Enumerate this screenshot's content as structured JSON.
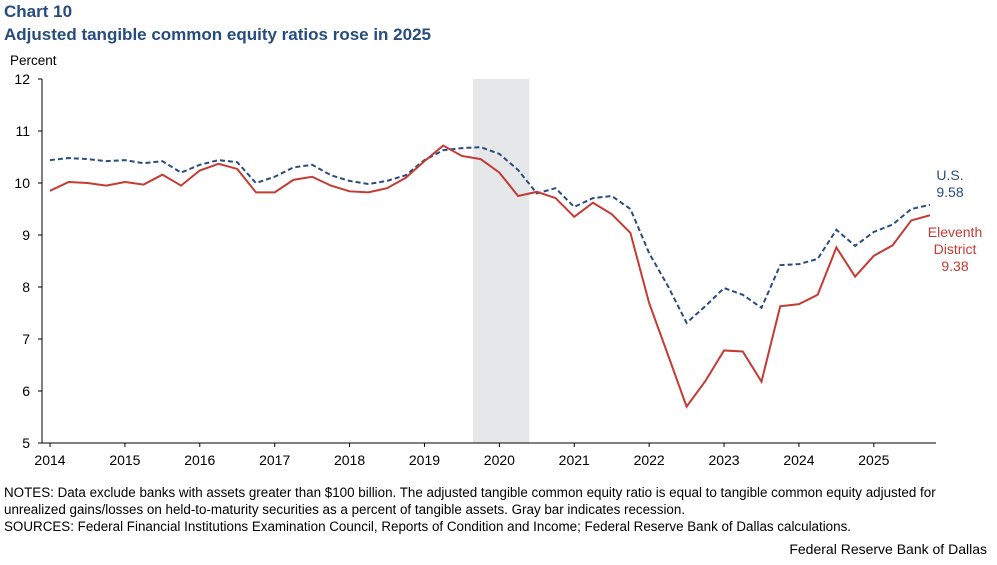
{
  "chart_data": {
    "type": "line",
    "title": "Chart 10",
    "subtitle": "Adjusted tangible common equity ratios rose in 2025",
    "y_label": "Percent",
    "categories": [
      "2014",
      null,
      null,
      null,
      "2015",
      null,
      null,
      null,
      "2016",
      null,
      null,
      null,
      "2017",
      null,
      null,
      null,
      "2018",
      null,
      null,
      null,
      "2019",
      null,
      null,
      null,
      "2020",
      null,
      null,
      null,
      "2021",
      null,
      null,
      null,
      "2022",
      null,
      null,
      null,
      "2023",
      null,
      null,
      null,
      "2024",
      null,
      null,
      null,
      "2025",
      null,
      null,
      null
    ],
    "series": [
      {
        "name": "U.S.",
        "color": "#2b4c7e",
        "dashed": true,
        "values": [
          10.44,
          10.48,
          10.46,
          10.42,
          10.44,
          10.38,
          10.42,
          10.2,
          10.35,
          10.44,
          10.4,
          10.0,
          10.12,
          10.3,
          10.35,
          10.15,
          10.04,
          9.98,
          10.04,
          10.15,
          10.44,
          10.63,
          10.67,
          10.69,
          10.56,
          10.25,
          9.8,
          9.9,
          9.54,
          9.71,
          9.75,
          9.5,
          8.65,
          8.02,
          7.31,
          7.63,
          7.98,
          7.85,
          7.6,
          8.42,
          8.44,
          8.54,
          9.1,
          8.79,
          9.06,
          9.2,
          9.5,
          9.58
        ],
        "value_labels": [
          null,
          null,
          null,
          null,
          null,
          null,
          null,
          null,
          null,
          null,
          null,
          null,
          null,
          null,
          null,
          null,
          null,
          null,
          null,
          null,
          null,
          null,
          null,
          null,
          null,
          null,
          null,
          null,
          null,
          null,
          null,
          null,
          null,
          null,
          null,
          null,
          null,
          null,
          null,
          null,
          null,
          null,
          null,
          null,
          null,
          null,
          null,
          "9.58"
        ]
      },
      {
        "name": "Eleventh District",
        "color": "#c43b34",
        "dashed": false,
        "values": [
          9.85,
          10.02,
          10.0,
          9.95,
          10.02,
          9.97,
          10.16,
          9.95,
          10.24,
          10.37,
          10.27,
          9.82,
          9.82,
          10.06,
          10.12,
          9.95,
          9.84,
          9.82,
          9.9,
          10.1,
          10.42,
          10.72,
          10.52,
          10.46,
          10.2,
          9.75,
          9.83,
          9.71,
          9.35,
          9.62,
          9.4,
          9.04,
          7.69,
          6.7,
          5.7,
          6.19,
          6.78,
          6.76,
          6.18,
          7.63,
          7.67,
          7.85,
          8.76,
          8.2,
          8.6,
          8.8,
          9.28,
          9.38
        ],
        "value_labels": [
          null,
          null,
          null,
          null,
          null,
          null,
          null,
          null,
          null,
          null,
          null,
          null,
          null,
          null,
          null,
          null,
          null,
          null,
          null,
          null,
          null,
          null,
          null,
          null,
          null,
          null,
          null,
          null,
          null,
          null,
          null,
          null,
          null,
          null,
          null,
          null,
          null,
          null,
          null,
          null,
          null,
          null,
          null,
          null,
          null,
          null,
          null,
          "9.38"
        ]
      }
    ],
    "recession": {
      "start": 22.6,
      "end": 25.6,
      "color": "#e6e7e9"
    },
    "ylim": [
      5,
      12
    ],
    "yticks": [
      5,
      6,
      7,
      8,
      9,
      10,
      11,
      12
    ],
    "notes": "NOTES: Data exclude banks with assets greater than $100 billion. The adjusted tangible common equity ratio is equal to tangible common equity adjusted for unrealized gains/losses on held-to-maturity securities as a percent of tangible assets. Gray bar indicates recession.",
    "sources": "SOURCES: Federal Financial Institutions Examination Council, Reports of Condition and Income; Federal Reserve Bank of Dallas calculations.",
    "credit": "Federal Reserve Bank of Dallas"
  }
}
